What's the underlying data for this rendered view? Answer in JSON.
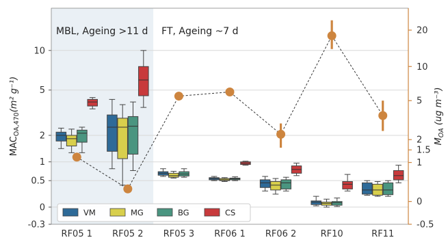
{
  "chart_data": {
    "type": "box",
    "left_axis": {
      "label": "MAC_OA,470 (m² g⁻¹)",
      "label_main": "MAC",
      "label_sub": "OA,470",
      "label_unit": "(m² g⁻¹)",
      "scale": "symlog",
      "ylim": [
        -0.3,
        20
      ],
      "ticks": [
        {
          "value": -0.3,
          "label": "-0.3"
        },
        {
          "value": 0,
          "label": "0"
        },
        {
          "value": 0.5,
          "label": "0.5"
        },
        {
          "value": 1,
          "label": "1"
        },
        {
          "value": 2,
          "label": "2"
        },
        {
          "value": 5,
          "label": "5"
        },
        {
          "value": 10,
          "label": "10"
        }
      ]
    },
    "right_axis": {
      "label": "M_OA (ug m⁻³)",
      "label_main": "M",
      "label_sub": "OA",
      "label_unit": "(ug m⁻³)",
      "scale": "symlog",
      "color": "#cd853f",
      "ylim": [
        -0.5,
        30
      ],
      "ticks": [
        {
          "value": -0.5,
          "label": "-0.5"
        },
        {
          "value": 0,
          "label": "0"
        },
        {
          "value": 1,
          "label": "1"
        },
        {
          "value": 1.5,
          "label": "1.5"
        },
        {
          "value": 2,
          "label": "2"
        },
        {
          "value": 5,
          "label": "5"
        },
        {
          "value": 10,
          "label": "10"
        },
        {
          "value": 20,
          "label": "20"
        }
      ]
    },
    "categories": [
      "RF05_1",
      "RF05_2",
      "RF05_3",
      "RF06_1",
      "RF06_2",
      "RF10",
      "RF11"
    ],
    "category_labels": [
      "RF05  1",
      "RF05  2",
      "RF05  3",
      "RF06  1",
      "RF06  2",
      "RF10",
      "RF11"
    ],
    "annotations": [
      {
        "text": "MBL, Ageing >11 d",
        "group": "MBL"
      },
      {
        "text": "FT, Ageing ~7 d",
        "group": "FT"
      }
    ],
    "shaded_categories": [
      "RF05_1",
      "RF05_2"
    ],
    "series": [
      {
        "name": "VM",
        "color": "#2e6a98",
        "boxes": [
          {
            "wlo": 1.45,
            "q1": 1.75,
            "med": 2.0,
            "q3": 2.15,
            "whi": 2.35
          },
          {
            "wlo": 0.8,
            "q1": 1.35,
            "med": 2.4,
            "q3": 3.1,
            "whi": 4.2
          },
          {
            "wlo": 0.6,
            "q1": 0.63,
            "med": 0.68,
            "q3": 0.72,
            "whi": 0.8
          },
          {
            "wlo": 0.5,
            "q1": 0.52,
            "med": 0.55,
            "q3": 0.57,
            "whi": 0.6
          },
          {
            "wlo": 0.28,
            "q1": 0.35,
            "med": 0.45,
            "q3": 0.52,
            "whi": 0.6
          },
          {
            "wlo": 0.02,
            "q1": 0.04,
            "med": 0.08,
            "q3": 0.1,
            "whi": 0.18
          },
          {
            "wlo": 0.2,
            "q1": 0.22,
            "med": 0.3,
            "q3": 0.45,
            "whi": 0.5
          }
        ]
      },
      {
        "name": "MG",
        "color": "#d8cf4c",
        "boxes": [
          {
            "wlo": 1.3,
            "q1": 1.55,
            "med": 1.85,
            "q3": 2.0,
            "whi": 2.3
          },
          {
            "wlo": 0.4,
            "q1": 1.1,
            "med": 2.4,
            "q3": 2.9,
            "whi": 3.8
          },
          {
            "wlo": 0.56,
            "q1": 0.58,
            "med": 0.62,
            "q3": 0.68,
            "whi": 0.73
          },
          {
            "wlo": 0.48,
            "q1": 0.5,
            "med": 0.52,
            "q3": 0.55,
            "whi": 0.57
          },
          {
            "wlo": 0.22,
            "q1": 0.3,
            "med": 0.4,
            "q3": 0.48,
            "whi": 0.55
          },
          {
            "wlo": 0.0,
            "q1": 0.03,
            "med": 0.06,
            "q3": 0.08,
            "whi": 0.13
          },
          {
            "wlo": 0.18,
            "q1": 0.2,
            "med": 0.3,
            "q3": 0.42,
            "whi": 0.48
          }
        ]
      },
      {
        "name": "BG",
        "color": "#4a9580",
        "boxes": [
          {
            "wlo": 1.3,
            "q1": 1.7,
            "med": 2.1,
            "q3": 2.25,
            "whi": 2.4
          },
          {
            "wlo": 0.75,
            "q1": 1.25,
            "med": 2.45,
            "q3": 3.0,
            "whi": 4.0
          },
          {
            "wlo": 0.58,
            "q1": 0.61,
            "med": 0.66,
            "q3": 0.72,
            "whi": 0.8
          },
          {
            "wlo": 0.5,
            "q1": 0.52,
            "med": 0.54,
            "q3": 0.56,
            "whi": 0.59
          },
          {
            "wlo": 0.28,
            "q1": 0.32,
            "med": 0.45,
            "q3": 0.52,
            "whi": 0.58
          },
          {
            "wlo": 0.01,
            "q1": 0.03,
            "med": 0.07,
            "q3": 0.09,
            "whi": 0.15
          },
          {
            "wlo": 0.18,
            "q1": 0.21,
            "med": 0.3,
            "q3": 0.45,
            "whi": 0.5
          }
        ]
      },
      {
        "name": "CS",
        "color": "#c83a3c",
        "boxes": [
          {
            "wlo": 3.5,
            "q1": 3.7,
            "med": 4.0,
            "q3": 4.2,
            "whi": 4.35
          },
          {
            "wlo": 3.6,
            "q1": 4.5,
            "med": 6.0,
            "q3": 7.6,
            "whi": 10.0
          },
          null,
          {
            "wlo": 0.9,
            "q1": 0.92,
            "med": 0.96,
            "q3": 1.0,
            "whi": 1.02
          },
          {
            "wlo": 0.62,
            "q1": 0.68,
            "med": 0.78,
            "q3": 0.88,
            "whi": 0.96
          },
          {
            "wlo": 0.28,
            "q1": 0.32,
            "med": 0.42,
            "q3": 0.48,
            "whi": 0.65
          },
          {
            "wlo": 0.45,
            "q1": 0.52,
            "med": 0.62,
            "q3": 0.75,
            "whi": 0.9
          }
        ]
      }
    ],
    "m_oa": {
      "axis": "right",
      "color": "#cd853f",
      "points": [
        {
          "category": "RF05_1",
          "value": 1.2,
          "lo": null,
          "hi": null
        },
        {
          "category": "RF05_2",
          "value": 0.25,
          "lo": null,
          "hi": null
        },
        {
          "category": "RF05_3",
          "value": 5.5,
          "lo": null,
          "hi": null
        },
        {
          "category": "RF06_1",
          "value": 6.0,
          "lo": null,
          "hi": null
        },
        {
          "category": "RF06_2",
          "value": 2.3,
          "lo": 1.6,
          "hi": 3.0
        },
        {
          "category": "RF10",
          "value": 18.0,
          "lo": 14.0,
          "hi": 24.0
        },
        {
          "category": "RF11",
          "value": 3.6,
          "lo": 2.5,
          "hi": 5.0
        }
      ]
    },
    "legend": {
      "position": "bottom-left",
      "entries": [
        "VM",
        "MG",
        "BG",
        "CS"
      ]
    },
    "grid": true
  }
}
